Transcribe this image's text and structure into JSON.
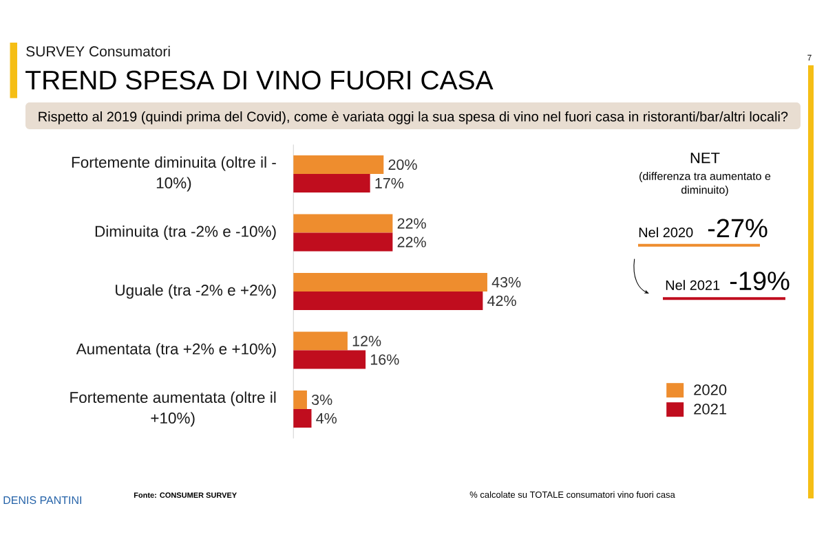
{
  "chart_data": {
    "type": "bar",
    "orientation": "horizontal",
    "title": "TREND SPESA DI VINO FUORI CASA",
    "subtitle": "Rispetto al 2019 (quindi prima del Covid), come è variata oggi la sua spesa di vino nel fuori casa in ristoranti/bar/altri locali?",
    "categories": [
      "Fortemente diminuita (oltre il -10%)",
      "Diminuita (tra -2% e -10%)",
      "Uguale (tra -2% e +2%)",
      "Aumentata (tra +2% e +10%)",
      "Fortemente aumentata (oltre il +10%)"
    ],
    "series": [
      {
        "name": "2020",
        "color": "#EE8D2E",
        "values": [
          20,
          22,
          43,
          12,
          3
        ],
        "value_labels": [
          "20%",
          "22%",
          "43%",
          "12%",
          "3%"
        ]
      },
      {
        "name": "2021",
        "color": "#C00D1E",
        "values": [
          17,
          22,
          42,
          16,
          4
        ],
        "value_labels": [
          "17%",
          "22%",
          "42%",
          "16%",
          "4%"
        ]
      }
    ],
    "tick_labels": "y",
    "legend": "bottom right",
    "annotations": [
      "SURVEY Consumatori",
      "NET",
      "(differenza tra aumentato e diminuito)",
      "Nel 2020",
      "-27%",
      "Nel 2021",
      "-19%",
      "Fonte: CONSUMER SURVEY",
      "% calcolate su TOTALE consumatori vino fuori casa",
      "DENIS PANTINI",
      "7"
    ]
  }
}
